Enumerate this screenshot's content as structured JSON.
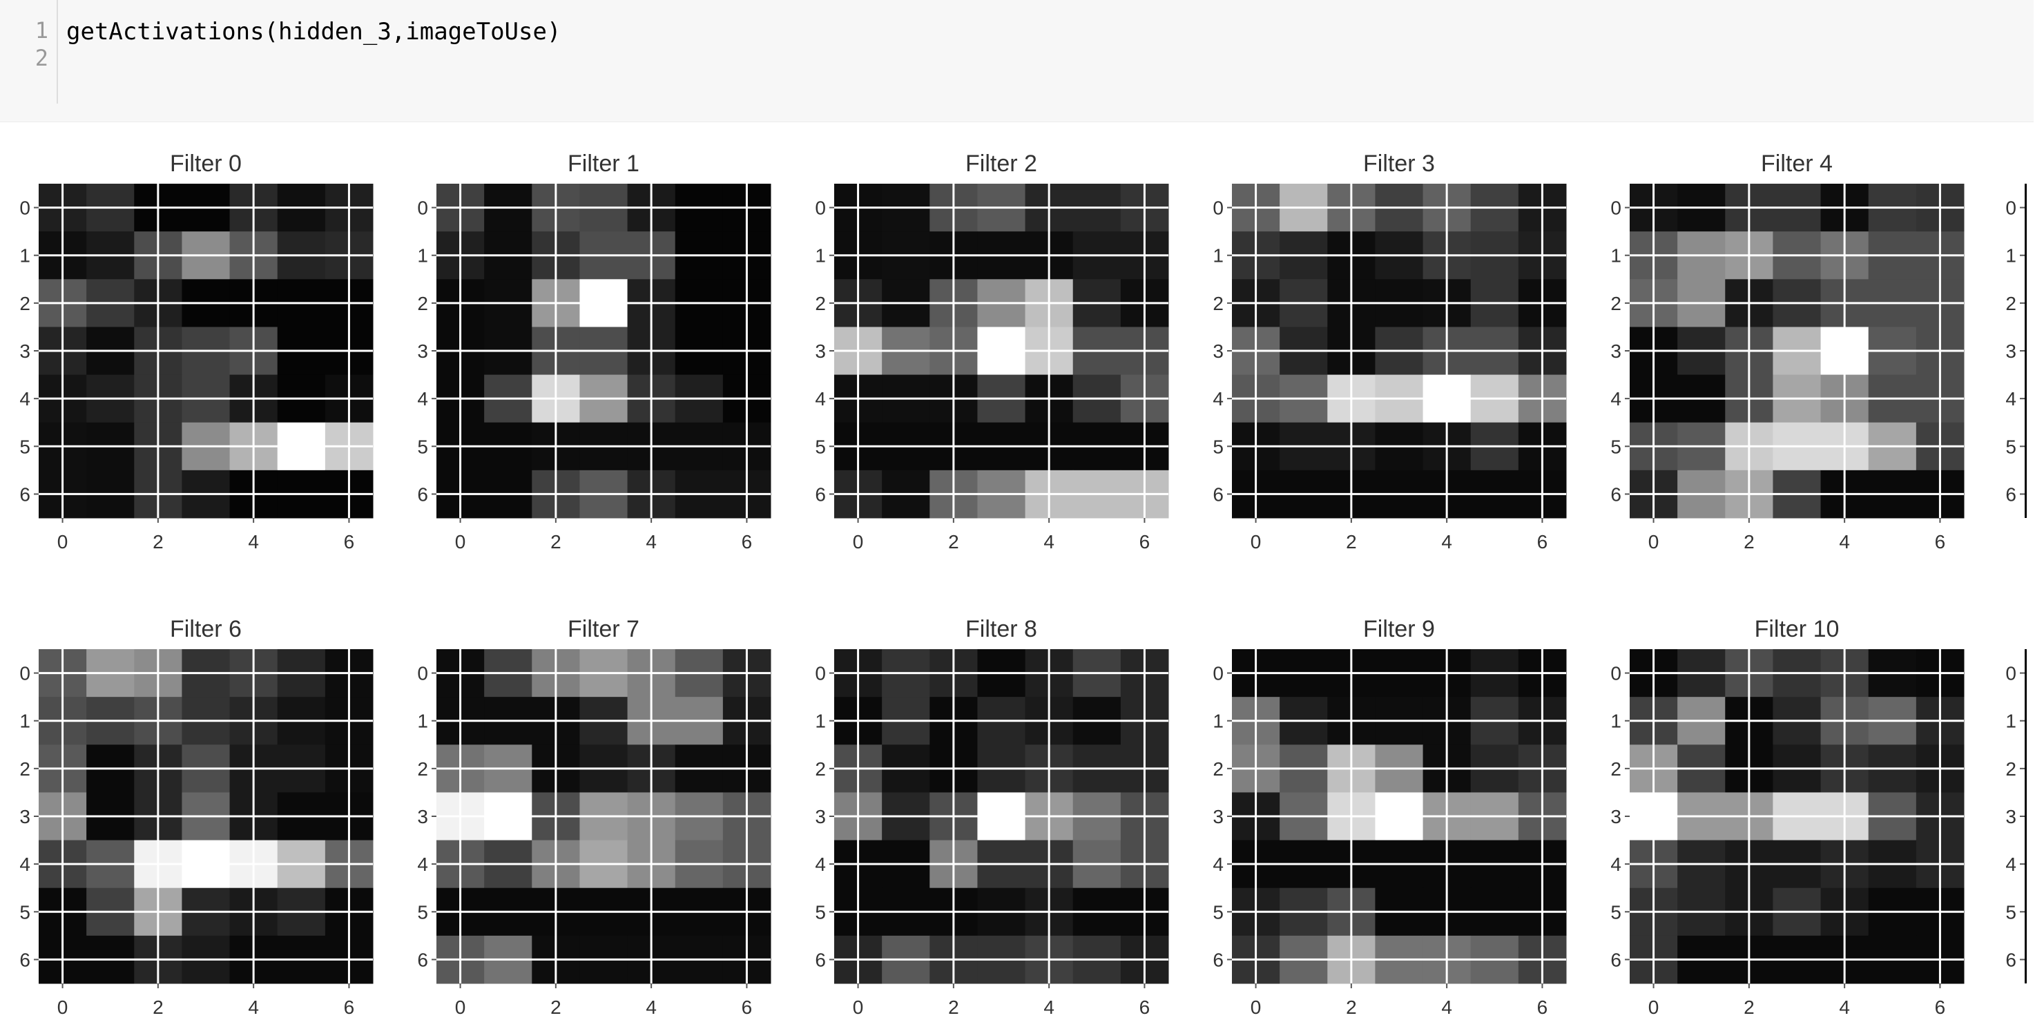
{
  "code_cell": {
    "line_numbers": [
      "1",
      "2"
    ],
    "lines": [
      "getActivations(hidden_3,imageToUse)",
      ""
    ]
  },
  "colors": {
    "grid_line": "#ffffff",
    "cell_background": "#f7f7f7"
  },
  "chart_data": [
    {
      "type": "heatmap",
      "title": "Filter 0",
      "x_ticks": [
        0,
        2,
        4,
        6
      ],
      "y_ticks": [
        0,
        1,
        2,
        3,
        4,
        5,
        6
      ],
      "colormap": "gray",
      "values": [
        [
          0.12,
          0.18,
          0.02,
          0.02,
          0.16,
          0.06,
          0.12
        ],
        [
          0.06,
          0.1,
          0.3,
          0.55,
          0.35,
          0.14,
          0.16
        ],
        [
          0.35,
          0.22,
          0.12,
          0.02,
          0.02,
          0.02,
          0.02
        ],
        [
          0.14,
          0.05,
          0.2,
          0.25,
          0.3,
          0.02,
          0.02
        ],
        [
          0.08,
          0.12,
          0.2,
          0.25,
          0.1,
          0.02,
          0.05
        ],
        [
          0.06,
          0.05,
          0.2,
          0.55,
          0.7,
          1.0,
          0.8
        ],
        [
          0.06,
          0.05,
          0.2,
          0.1,
          0.02,
          0.02,
          0.02
        ]
      ]
    },
    {
      "type": "heatmap",
      "title": "Filter 1",
      "x_ticks": [
        0,
        2,
        4,
        6
      ],
      "y_ticks": [
        0,
        1,
        2,
        3,
        4,
        5,
        6
      ],
      "colormap": "gray",
      "values": [
        [
          0.25,
          0.05,
          0.3,
          0.28,
          0.1,
          0.02,
          0.02
        ],
        [
          0.12,
          0.05,
          0.2,
          0.3,
          0.3,
          0.02,
          0.02
        ],
        [
          0.04,
          0.05,
          0.6,
          1.0,
          0.12,
          0.02,
          0.02
        ],
        [
          0.04,
          0.05,
          0.3,
          0.3,
          0.12,
          0.02,
          0.02
        ],
        [
          0.04,
          0.25,
          0.85,
          0.6,
          0.2,
          0.12,
          0.02
        ],
        [
          0.04,
          0.04,
          0.05,
          0.05,
          0.05,
          0.05,
          0.05
        ],
        [
          0.04,
          0.04,
          0.25,
          0.35,
          0.15,
          0.08,
          0.08
        ]
      ]
    },
    {
      "type": "heatmap",
      "title": "Filter 2",
      "x_ticks": [
        0,
        2,
        4,
        6
      ],
      "y_ticks": [
        0,
        1,
        2,
        3,
        4,
        5,
        6
      ],
      "colormap": "gray",
      "values": [
        [
          0.05,
          0.06,
          0.3,
          0.35,
          0.15,
          0.15,
          0.2
        ],
        [
          0.05,
          0.06,
          0.05,
          0.05,
          0.05,
          0.1,
          0.1
        ],
        [
          0.15,
          0.06,
          0.35,
          0.55,
          0.75,
          0.15,
          0.06
        ],
        [
          0.75,
          0.45,
          0.4,
          1.0,
          0.8,
          0.3,
          0.3
        ],
        [
          0.06,
          0.06,
          0.06,
          0.25,
          0.05,
          0.2,
          0.35
        ],
        [
          0.04,
          0.04,
          0.04,
          0.04,
          0.04,
          0.04,
          0.04
        ],
        [
          0.15,
          0.06,
          0.4,
          0.5,
          0.75,
          0.75,
          0.75
        ]
      ]
    },
    {
      "type": "heatmap",
      "title": "Filter 3",
      "x_ticks": [
        0,
        2,
        4,
        6
      ],
      "y_ticks": [
        0,
        1,
        2,
        3,
        4,
        5,
        6
      ],
      "colormap": "gray",
      "values": [
        [
          0.38,
          0.72,
          0.4,
          0.25,
          0.38,
          0.25,
          0.1
        ],
        [
          0.2,
          0.15,
          0.05,
          0.1,
          0.22,
          0.2,
          0.12
        ],
        [
          0.1,
          0.2,
          0.05,
          0.05,
          0.06,
          0.2,
          0.05
        ],
        [
          0.4,
          0.15,
          0.05,
          0.2,
          0.3,
          0.3,
          0.15
        ],
        [
          0.35,
          0.4,
          0.85,
          0.8,
          1.0,
          0.8,
          0.5
        ],
        [
          0.06,
          0.1,
          0.1,
          0.05,
          0.08,
          0.2,
          0.05
        ],
        [
          0.04,
          0.04,
          0.04,
          0.04,
          0.04,
          0.04,
          0.04
        ]
      ]
    },
    {
      "type": "heatmap",
      "title": "Filter 4",
      "x_ticks": [
        0,
        2,
        4,
        6
      ],
      "y_ticks": [
        0,
        1,
        2,
        3,
        4,
        5,
        6
      ],
      "colormap": "gray",
      "values": [
        [
          0.08,
          0.05,
          0.2,
          0.2,
          0.05,
          0.22,
          0.2
        ],
        [
          0.35,
          0.55,
          0.6,
          0.35,
          0.45,
          0.3,
          0.3
        ],
        [
          0.4,
          0.55,
          0.1,
          0.2,
          0.3,
          0.3,
          0.3
        ],
        [
          0.04,
          0.15,
          0.3,
          0.72,
          1.0,
          0.35,
          0.3
        ],
        [
          0.04,
          0.04,
          0.3,
          0.65,
          0.55,
          0.3,
          0.3
        ],
        [
          0.3,
          0.35,
          0.8,
          0.85,
          0.85,
          0.65,
          0.25
        ],
        [
          0.15,
          0.55,
          0.65,
          0.25,
          0.04,
          0.04,
          0.04
        ]
      ]
    },
    {
      "type": "heatmap",
      "title": "Filter 6",
      "x_ticks": [
        0,
        2,
        4,
        6
      ],
      "y_ticks": [
        0,
        1,
        2,
        3,
        4,
        5,
        6
      ],
      "colormap": "gray",
      "values": [
        [
          0.35,
          0.6,
          0.55,
          0.2,
          0.25,
          0.15,
          0.05
        ],
        [
          0.3,
          0.25,
          0.3,
          0.2,
          0.15,
          0.08,
          0.05
        ],
        [
          0.35,
          0.04,
          0.15,
          0.3,
          0.1,
          0.1,
          0.05
        ],
        [
          0.55,
          0.04,
          0.15,
          0.4,
          0.1,
          0.04,
          0.04
        ],
        [
          0.25,
          0.35,
          0.95,
          1.0,
          0.95,
          0.75,
          0.4
        ],
        [
          0.04,
          0.25,
          0.65,
          0.15,
          0.1,
          0.15,
          0.04
        ],
        [
          0.04,
          0.04,
          0.15,
          0.1,
          0.04,
          0.04,
          0.04
        ]
      ]
    },
    {
      "type": "heatmap",
      "title": "Filter 7",
      "x_ticks": [
        0,
        2,
        4,
        6
      ],
      "y_ticks": [
        0,
        1,
        2,
        3,
        4,
        5,
        6
      ],
      "colormap": "gray",
      "values": [
        [
          0.05,
          0.25,
          0.5,
          0.6,
          0.5,
          0.35,
          0.15
        ],
        [
          0.05,
          0.05,
          0.05,
          0.15,
          0.5,
          0.5,
          0.1
        ],
        [
          0.45,
          0.5,
          0.05,
          0.1,
          0.15,
          0.05,
          0.05
        ],
        [
          0.95,
          1.0,
          0.3,
          0.6,
          0.55,
          0.45,
          0.35
        ],
        [
          0.35,
          0.25,
          0.5,
          0.65,
          0.55,
          0.4,
          0.35
        ],
        [
          0.04,
          0.04,
          0.04,
          0.04,
          0.04,
          0.04,
          0.04
        ],
        [
          0.35,
          0.45,
          0.05,
          0.05,
          0.05,
          0.05,
          0.05
        ]
      ]
    },
    {
      "type": "heatmap",
      "title": "Filter 8",
      "x_ticks": [
        0,
        2,
        4,
        6
      ],
      "y_ticks": [
        0,
        1,
        2,
        3,
        4,
        5,
        6
      ],
      "colormap": "gray",
      "values": [
        [
          0.1,
          0.2,
          0.15,
          0.04,
          0.12,
          0.25,
          0.15
        ],
        [
          0.04,
          0.2,
          0.04,
          0.15,
          0.1,
          0.05,
          0.15
        ],
        [
          0.3,
          0.08,
          0.04,
          0.15,
          0.2,
          0.15,
          0.15
        ],
        [
          0.5,
          0.15,
          0.3,
          1.0,
          0.6,
          0.45,
          0.3
        ],
        [
          0.04,
          0.04,
          0.5,
          0.2,
          0.2,
          0.4,
          0.3
        ],
        [
          0.04,
          0.04,
          0.04,
          0.06,
          0.1,
          0.04,
          0.04
        ],
        [
          0.15,
          0.35,
          0.2,
          0.2,
          0.25,
          0.2,
          0.12
        ]
      ]
    },
    {
      "type": "heatmap",
      "title": "Filter 9",
      "x_ticks": [
        0,
        2,
        4,
        6
      ],
      "y_ticks": [
        0,
        1,
        2,
        3,
        4,
        5,
        6
      ],
      "colormap": "gray",
      "values": [
        [
          0.04,
          0.04,
          0.04,
          0.04,
          0.04,
          0.1,
          0.04
        ],
        [
          0.45,
          0.12,
          0.05,
          0.05,
          0.05,
          0.2,
          0.1
        ],
        [
          0.5,
          0.35,
          0.75,
          0.55,
          0.05,
          0.15,
          0.2
        ],
        [
          0.1,
          0.4,
          0.85,
          1.0,
          0.6,
          0.6,
          0.35
        ],
        [
          0.04,
          0.04,
          0.04,
          0.04,
          0.04,
          0.04,
          0.04
        ],
        [
          0.12,
          0.2,
          0.3,
          0.04,
          0.04,
          0.04,
          0.04
        ],
        [
          0.2,
          0.4,
          0.7,
          0.45,
          0.45,
          0.4,
          0.25
        ]
      ]
    },
    {
      "type": "heatmap",
      "title": "Filter 10",
      "x_ticks": [
        0,
        2,
        4,
        6
      ],
      "y_ticks": [
        0,
        1,
        2,
        3,
        4,
        5,
        6
      ],
      "colormap": "gray",
      "values": [
        [
          0.04,
          0.15,
          0.3,
          0.2,
          0.25,
          0.05,
          0.04
        ],
        [
          0.25,
          0.55,
          0.04,
          0.15,
          0.35,
          0.4,
          0.15
        ],
        [
          0.6,
          0.25,
          0.04,
          0.1,
          0.2,
          0.15,
          0.1
        ],
        [
          1.0,
          0.6,
          0.6,
          0.85,
          0.85,
          0.35,
          0.15
        ],
        [
          0.3,
          0.15,
          0.1,
          0.1,
          0.15,
          0.1,
          0.15
        ],
        [
          0.2,
          0.15,
          0.1,
          0.2,
          0.1,
          0.04,
          0.04
        ],
        [
          0.2,
          0.04,
          0.04,
          0.04,
          0.04,
          0.04,
          0.04
        ]
      ]
    },
    {
      "type": "heatmap",
      "title": "",
      "x_ticks": [],
      "y_ticks": [
        0,
        1,
        2,
        3,
        4,
        5,
        6
      ],
      "colormap": "gray",
      "values": []
    },
    {
      "type": "heatmap",
      "title": "",
      "x_ticks": [],
      "y_ticks": [
        0,
        1,
        2,
        3,
        4,
        5,
        6
      ],
      "colormap": "gray",
      "values": []
    }
  ]
}
